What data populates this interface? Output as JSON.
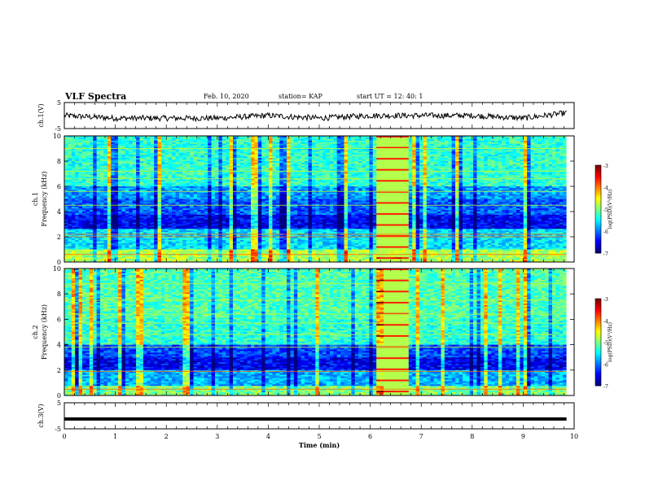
{
  "header": {
    "title": "VLF Spectra",
    "date": "Feb. 10, 2020",
    "station": "station= KAP",
    "start": "start  UT =   12: 40: 1"
  },
  "chart_data": [
    {
      "type": "line",
      "panel": "ch1-waveform",
      "ylabel": "ch.1(V)",
      "ylim": [
        -5,
        5
      ],
      "yticks": [
        "5",
        "-5"
      ],
      "xlim": [
        0,
        10
      ],
      "x_range_data": [
        0,
        9.85
      ],
      "series": [
        {
          "color": "#000000",
          "x": [
            0,
            1,
            2,
            3,
            4,
            5,
            6,
            7,
            8,
            9,
            9.85
          ],
          "values": [
            0,
            -1,
            -1,
            -1,
            0,
            -1,
            0,
            0,
            0,
            -1,
            1
          ]
        }
      ]
    },
    {
      "type": "heatmap",
      "panel": "ch1-spectrogram",
      "ylabel": "ch.1",
      "ylabel2": "Frequency  (kHz)",
      "yticks": [
        "0",
        "2",
        "4",
        "6",
        "8",
        "10"
      ],
      "ylim": [
        0,
        10
      ],
      "xlim": [
        0,
        10
      ],
      "x_range_data": [
        0,
        9.85
      ],
      "colorbar": {
        "label": "log(PSD)(V²/Hz)",
        "range": [
          -7,
          -3
        ],
        "ticks": [
          "-3",
          "-4",
          "-5",
          "-6",
          "-7"
        ]
      },
      "bright_segment_min": [
        6.15,
        6.7
      ]
    },
    {
      "type": "heatmap",
      "panel": "ch2-spectrogram",
      "ylabel": "ch.2",
      "ylabel2": "Frequency  (kHz)",
      "yticks": [
        "0",
        "2",
        "4",
        "6",
        "8",
        "10"
      ],
      "ylim": [
        0,
        10
      ],
      "xlim": [
        0,
        10
      ],
      "x_range_data": [
        0,
        9.85
      ],
      "colorbar": {
        "label": "log(PSD)(V²/Hz)",
        "range": [
          -7,
          -3
        ],
        "ticks": [
          "-3",
          "-4",
          "-5",
          "-6",
          "-7"
        ]
      },
      "bright_segment_min": [
        6.15,
        6.7
      ]
    },
    {
      "type": "line",
      "panel": "ch3-waveform",
      "ylabel": "ch.3(V)",
      "ylim": [
        -5,
        5
      ],
      "yticks": [
        "5",
        "-5"
      ],
      "xlim": [
        0,
        10
      ],
      "xlabel": "Time  (min)",
      "xticks": [
        "0",
        "1",
        "2",
        "3",
        "4",
        "5",
        "6",
        "7",
        "8",
        "9",
        "10"
      ],
      "series": [
        {
          "color": "#000000",
          "x": [
            0,
            9.85
          ],
          "values": [
            -1.2,
            -1.2
          ]
        }
      ]
    }
  ]
}
